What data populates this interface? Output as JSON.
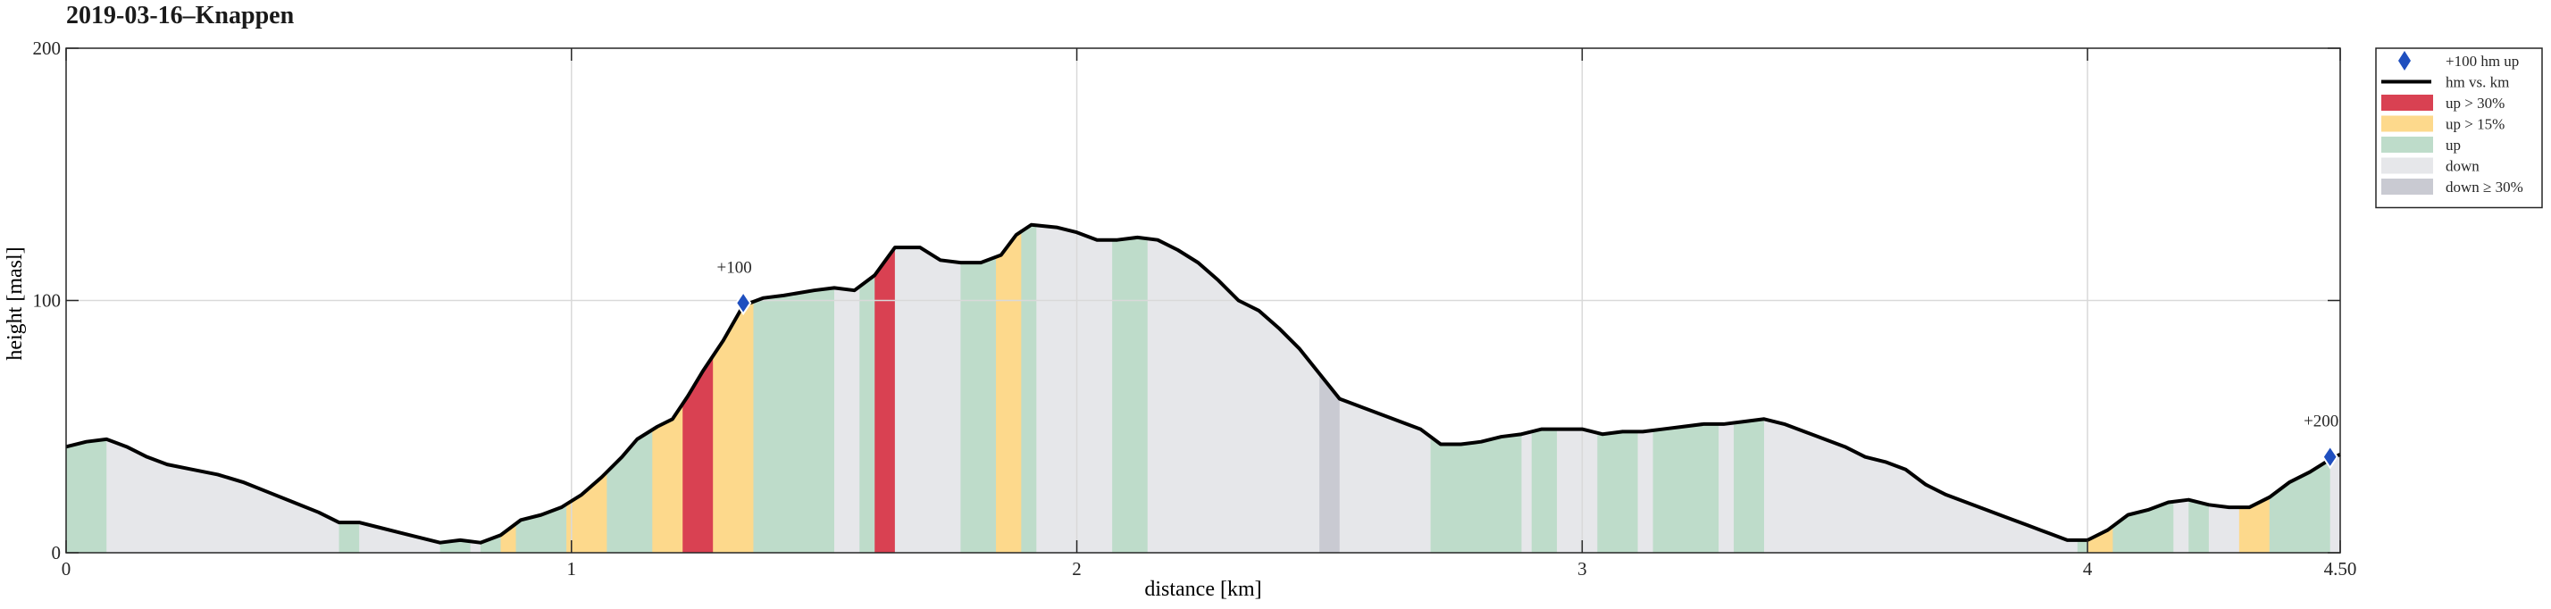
{
  "chart_data": {
    "type": "area",
    "title": "2019-03-16–Knappen",
    "xlabel": "distance [km]",
    "ylabel": "height [masl]",
    "xlim": [
      0,
      4.5
    ],
    "ylim": [
      0,
      200
    ],
    "x_ticks": [
      0,
      1,
      2,
      3,
      4,
      4.5
    ],
    "x_tick_labels": [
      "0",
      "1",
      "2",
      "3",
      "4",
      "4.50"
    ],
    "y_ticks": [
      0,
      100,
      200
    ],
    "y_tick_labels": [
      "0",
      "100",
      "200"
    ],
    "grid": true,
    "legend_position": "outside-top-right",
    "legend": [
      {
        "key": "marker",
        "label": "+100 hm up",
        "color": "#1f4fbf"
      },
      {
        "key": "line",
        "label": "hm vs. km",
        "color": "#000000"
      },
      {
        "key": "steep_up",
        "label": "up > 30%",
        "color": "#d94152"
      },
      {
        "key": "med_up",
        "label": "up > 15%",
        "color": "#fdd98c"
      },
      {
        "key": "up",
        "label": "up",
        "color": "#bedcca"
      },
      {
        "key": "down",
        "label": "down",
        "color": "#e6e7ea"
      },
      {
        "key": "steep_down",
        "label": "down ≥ 30%",
        "color": "#c9cad2"
      }
    ],
    "profile": [
      [
        0,
        42
      ],
      [
        0.04,
        44
      ],
      [
        0.08,
        45
      ],
      [
        0.12,
        42
      ],
      [
        0.16,
        38
      ],
      [
        0.2,
        35
      ],
      [
        0.25,
        33
      ],
      [
        0.3,
        31
      ],
      [
        0.35,
        28
      ],
      [
        0.4,
        24
      ],
      [
        0.45,
        20
      ],
      [
        0.5,
        16
      ],
      [
        0.54,
        12
      ],
      [
        0.58,
        12
      ],
      [
        0.62,
        10
      ],
      [
        0.66,
        8
      ],
      [
        0.7,
        6
      ],
      [
        0.74,
        4
      ],
      [
        0.78,
        5
      ],
      [
        0.82,
        4
      ],
      [
        0.86,
        7
      ],
      [
        0.9,
        13
      ],
      [
        0.94,
        15
      ],
      [
        0.98,
        18
      ],
      [
        1.02,
        23
      ],
      [
        1.06,
        30
      ],
      [
        1.1,
        38
      ],
      [
        1.13,
        45
      ],
      [
        1.17,
        50
      ],
      [
        1.2,
        53
      ],
      [
        1.23,
        62
      ],
      [
        1.26,
        72
      ],
      [
        1.3,
        84
      ],
      [
        1.34,
        98
      ],
      [
        1.38,
        101
      ],
      [
        1.42,
        102
      ],
      [
        1.48,
        104
      ],
      [
        1.52,
        105
      ],
      [
        1.56,
        104
      ],
      [
        1.6,
        110
      ],
      [
        1.64,
        121
      ],
      [
        1.69,
        121
      ],
      [
        1.73,
        116
      ],
      [
        1.77,
        115
      ],
      [
        1.81,
        115
      ],
      [
        1.85,
        118
      ],
      [
        1.88,
        126
      ],
      [
        1.91,
        130
      ],
      [
        1.96,
        129
      ],
      [
        2.0,
        127
      ],
      [
        2.04,
        124
      ],
      [
        2.08,
        124
      ],
      [
        2.12,
        125
      ],
      [
        2.16,
        124
      ],
      [
        2.2,
        120
      ],
      [
        2.24,
        115
      ],
      [
        2.28,
        108
      ],
      [
        2.32,
        100
      ],
      [
        2.36,
        96
      ],
      [
        2.4,
        89
      ],
      [
        2.44,
        81
      ],
      [
        2.48,
        71
      ],
      [
        2.52,
        61
      ],
      [
        2.56,
        58
      ],
      [
        2.6,
        55
      ],
      [
        2.64,
        52
      ],
      [
        2.68,
        49
      ],
      [
        2.72,
        43
      ],
      [
        2.76,
        43
      ],
      [
        2.8,
        44
      ],
      [
        2.84,
        46
      ],
      [
        2.88,
        47
      ],
      [
        2.92,
        49
      ],
      [
        2.96,
        49
      ],
      [
        3.0,
        49
      ],
      [
        3.04,
        47
      ],
      [
        3.08,
        48
      ],
      [
        3.12,
        48
      ],
      [
        3.16,
        49
      ],
      [
        3.2,
        50
      ],
      [
        3.24,
        51
      ],
      [
        3.28,
        51
      ],
      [
        3.32,
        52
      ],
      [
        3.36,
        53
      ],
      [
        3.4,
        51
      ],
      [
        3.44,
        48
      ],
      [
        3.48,
        45
      ],
      [
        3.52,
        42
      ],
      [
        3.56,
        38
      ],
      [
        3.6,
        36
      ],
      [
        3.64,
        33
      ],
      [
        3.68,
        27
      ],
      [
        3.72,
        23
      ],
      [
        3.76,
        20
      ],
      [
        3.8,
        17
      ],
      [
        3.84,
        14
      ],
      [
        3.88,
        11
      ],
      [
        3.92,
        8
      ],
      [
        3.96,
        5
      ],
      [
        4.0,
        5
      ],
      [
        4.04,
        9
      ],
      [
        4.08,
        15
      ],
      [
        4.12,
        17
      ],
      [
        4.16,
        20
      ],
      [
        4.2,
        21
      ],
      [
        4.24,
        19
      ],
      [
        4.28,
        18
      ],
      [
        4.32,
        18
      ],
      [
        4.36,
        22
      ],
      [
        4.4,
        28
      ],
      [
        4.44,
        32
      ],
      [
        4.48,
        37
      ],
      [
        4.5,
        39
      ]
    ],
    "segments": [
      {
        "from": 0,
        "to": 0.08,
        "type": "up"
      },
      {
        "from": 0.08,
        "to": 0.54,
        "type": "down"
      },
      {
        "from": 0.54,
        "to": 0.58,
        "type": "up"
      },
      {
        "from": 0.58,
        "to": 0.74,
        "type": "down"
      },
      {
        "from": 0.74,
        "to": 0.8,
        "type": "up"
      },
      {
        "from": 0.8,
        "to": 0.82,
        "type": "down"
      },
      {
        "from": 0.82,
        "to": 0.86,
        "type": "up"
      },
      {
        "from": 0.86,
        "to": 0.89,
        "type": "med_up"
      },
      {
        "from": 0.89,
        "to": 0.99,
        "type": "up"
      },
      {
        "from": 0.99,
        "to": 1.07,
        "type": "med_up"
      },
      {
        "from": 1.07,
        "to": 1.16,
        "type": "up"
      },
      {
        "from": 1.16,
        "to": 1.22,
        "type": "med_up"
      },
      {
        "from": 1.22,
        "to": 1.28,
        "type": "steep_up"
      },
      {
        "from": 1.28,
        "to": 1.36,
        "type": "med_up"
      },
      {
        "from": 1.36,
        "to": 1.52,
        "type": "up"
      },
      {
        "from": 1.52,
        "to": 1.57,
        "type": "down"
      },
      {
        "from": 1.57,
        "to": 1.6,
        "type": "up"
      },
      {
        "from": 1.6,
        "to": 1.64,
        "type": "steep_up"
      },
      {
        "from": 1.64,
        "to": 1.77,
        "type": "down"
      },
      {
        "from": 1.77,
        "to": 1.84,
        "type": "up"
      },
      {
        "from": 1.84,
        "to": 1.89,
        "type": "med_up"
      },
      {
        "from": 1.89,
        "to": 1.92,
        "type": "up"
      },
      {
        "from": 1.92,
        "to": 2.07,
        "type": "down"
      },
      {
        "from": 2.07,
        "to": 2.14,
        "type": "up"
      },
      {
        "from": 2.14,
        "to": 2.48,
        "type": "down"
      },
      {
        "from": 2.48,
        "to": 2.52,
        "type": "steep_down"
      },
      {
        "from": 2.52,
        "to": 2.7,
        "type": "down"
      },
      {
        "from": 2.7,
        "to": 2.88,
        "type": "up"
      },
      {
        "from": 2.88,
        "to": 2.9,
        "type": "down"
      },
      {
        "from": 2.9,
        "to": 2.95,
        "type": "up"
      },
      {
        "from": 2.95,
        "to": 3.03,
        "type": "down"
      },
      {
        "from": 3.03,
        "to": 3.11,
        "type": "up"
      },
      {
        "from": 3.11,
        "to": 3.14,
        "type": "down"
      },
      {
        "from": 3.14,
        "to": 3.27,
        "type": "up"
      },
      {
        "from": 3.27,
        "to": 3.3,
        "type": "down"
      },
      {
        "from": 3.3,
        "to": 3.36,
        "type": "up"
      },
      {
        "from": 3.36,
        "to": 3.98,
        "type": "down"
      },
      {
        "from": 3.98,
        "to": 4.0,
        "type": "up"
      },
      {
        "from": 4.0,
        "to": 4.05,
        "type": "med_up"
      },
      {
        "from": 4.05,
        "to": 4.17,
        "type": "up"
      },
      {
        "from": 4.17,
        "to": 4.2,
        "type": "down"
      },
      {
        "from": 4.2,
        "to": 4.24,
        "type": "up"
      },
      {
        "from": 4.24,
        "to": 4.3,
        "type": "down"
      },
      {
        "from": 4.3,
        "to": 4.36,
        "type": "med_up"
      },
      {
        "from": 4.36,
        "to": 4.48,
        "type": "up"
      },
      {
        "from": 4.48,
        "to": 4.5,
        "type": "down"
      }
    ],
    "markers": [
      {
        "x": 1.34,
        "y": 99,
        "label": "+100"
      },
      {
        "x": 4.48,
        "y": 38,
        "label": "+200"
      }
    ]
  }
}
